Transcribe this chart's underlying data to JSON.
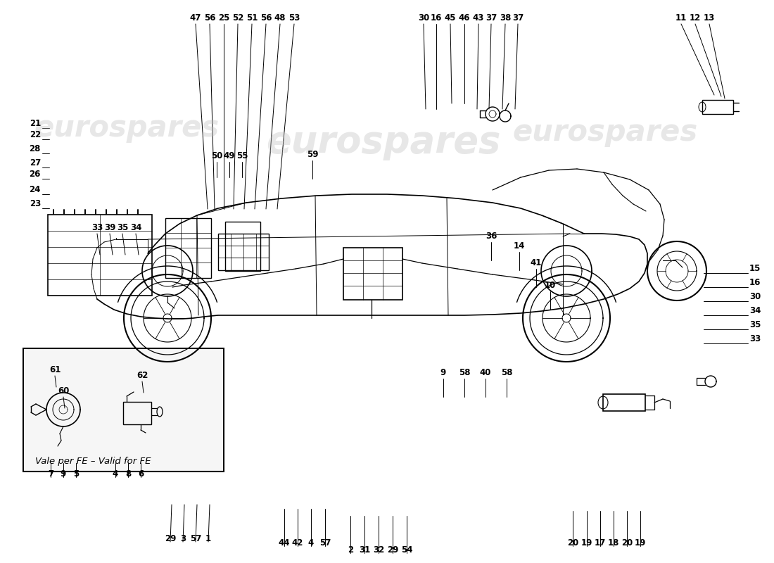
{
  "bg_color": "#ffffff",
  "line_color": "#000000",
  "watermark_color": "#c0c0c0",
  "inset_label": "Vale per FE – Valid for FE",
  "top_left_labels": [
    [
      "47",
      278,
      768
    ],
    [
      "56",
      298,
      768
    ],
    [
      "25",
      318,
      768
    ],
    [
      "52",
      338,
      768
    ],
    [
      "51",
      358,
      768
    ],
    [
      "56",
      378,
      768
    ],
    [
      "48",
      398,
      768
    ],
    [
      "53",
      418,
      768
    ]
  ],
  "top_right_labels": [
    [
      "30",
      602,
      768
    ],
    [
      "16",
      620,
      768
    ],
    [
      "45",
      640,
      768
    ],
    [
      "46",
      660,
      768
    ],
    [
      "43",
      680,
      768
    ],
    [
      "37",
      698,
      768
    ],
    [
      "38",
      718,
      768
    ],
    [
      "37",
      736,
      768
    ]
  ],
  "top_far_right_labels": [
    [
      "11",
      968,
      768
    ],
    [
      "12",
      988,
      768
    ],
    [
      "13",
      1008,
      768
    ]
  ],
  "left_labels": [
    [
      "21",
      58,
      618
    ],
    [
      "22",
      58,
      602
    ],
    [
      "28",
      58,
      582
    ],
    [
      "27",
      58,
      562
    ],
    [
      "26",
      58,
      546
    ],
    [
      "24",
      58,
      524
    ],
    [
      "23",
      58,
      504
    ]
  ],
  "mid_left_labels": [
    [
      "33",
      138,
      470
    ],
    [
      "39",
      156,
      470
    ],
    [
      "35",
      174,
      470
    ],
    [
      "34",
      193,
      470
    ]
  ],
  "mid_bottom_labels": [
    [
      "50",
      308,
      572
    ],
    [
      "49",
      326,
      572
    ],
    [
      "55",
      344,
      572
    ]
  ],
  "bottom_left_labels": [
    [
      "29",
      242,
      28
    ],
    [
      "3",
      260,
      28
    ],
    [
      "57",
      278,
      28
    ],
    [
      "1",
      296,
      28
    ]
  ],
  "bottom_center_labels": [
    [
      "44",
      404,
      22
    ],
    [
      "42",
      423,
      22
    ],
    [
      "4",
      442,
      22
    ],
    [
      "57",
      462,
      22
    ],
    [
      "2",
      498,
      12
    ],
    [
      "31",
      518,
      12
    ],
    [
      "32",
      538,
      12
    ],
    [
      "29",
      558,
      12
    ],
    [
      "54",
      578,
      12
    ]
  ],
  "bottom_right_labels": [
    [
      "20",
      814,
      22
    ],
    [
      "19",
      834,
      22
    ],
    [
      "17",
      853,
      22
    ],
    [
      "18",
      872,
      22
    ],
    [
      "20",
      891,
      22
    ],
    [
      "19",
      910,
      22
    ]
  ],
  "right_labels": [
    [
      "15",
      1065,
      412
    ],
    [
      "16",
      1065,
      392
    ],
    [
      "30",
      1065,
      372
    ],
    [
      "34",
      1065,
      352
    ],
    [
      "35",
      1065,
      332
    ],
    [
      "33",
      1065,
      312
    ]
  ],
  "misc_labels": [
    [
      "59",
      444,
      574
    ],
    [
      "36",
      698,
      458
    ],
    [
      "14",
      738,
      444
    ],
    [
      "41",
      762,
      420
    ],
    [
      "10",
      782,
      388
    ],
    [
      "9",
      630,
      264
    ],
    [
      "58",
      660,
      264
    ],
    [
      "40",
      690,
      264
    ],
    [
      "58",
      720,
      264
    ]
  ],
  "inset_bot_labels": [
    [
      "7",
      72,
      120
    ],
    [
      "9",
      90,
      120
    ],
    [
      "5",
      108,
      120
    ],
    [
      "4",
      164,
      120
    ],
    [
      "8",
      182,
      120
    ],
    [
      "6",
      200,
      120
    ]
  ],
  "inset_item_labels": [
    [
      "61",
      78,
      268
    ],
    [
      "62",
      202,
      260
    ],
    [
      "60",
      90,
      238
    ]
  ]
}
